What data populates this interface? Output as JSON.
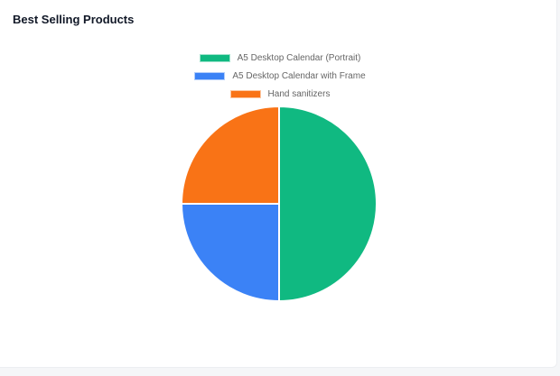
{
  "card": {
    "title": "Best Selling Products"
  },
  "chart_data": {
    "type": "pie",
    "categories": [
      "A5 Desktop Calendar (Portrait)",
      "A5 Desktop Calendar with Frame",
      "Hand sanitizers"
    ],
    "values": [
      2,
      1,
      1
    ],
    "colors": [
      "#10b981",
      "#3b82f6",
      "#f97316"
    ],
    "legend": "top"
  }
}
